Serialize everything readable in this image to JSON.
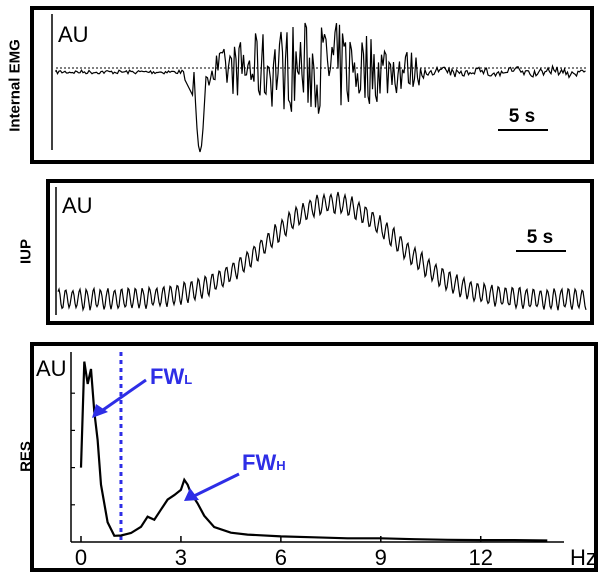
{
  "panels": {
    "emg": {
      "side_label": "Internal EMG",
      "au_label": "AU",
      "scale_bar": "5 s"
    },
    "iup": {
      "side_label": "IUP",
      "au_label": "AU",
      "scale_bar": "5 s"
    },
    "res": {
      "side_label": "RES",
      "au_label": "AU",
      "annotation_low": {
        "main": "FW",
        "sub": "L"
      },
      "annotation_high": {
        "main": "FW",
        "sub": "H"
      }
    }
  },
  "colors": {
    "trace": "#000000",
    "annotation": "#2e2ee6",
    "frame": "#000000"
  },
  "chart_data": [
    {
      "type": "line",
      "title": "",
      "xlabel": "",
      "ylabel": "AU",
      "y_side_label": "Internal EMG",
      "scale_bar": "5 s",
      "description_values": {
        "baseline": 0.0,
        "negative_spike_min": -1.6,
        "burst_amplitude": 0.8
      }
    },
    {
      "type": "line",
      "title": "",
      "xlabel": "",
      "ylabel": "AU",
      "y_side_label": "IUP",
      "scale_bar": "5 s",
      "description_values": {
        "baseline_level": 0.1,
        "peak_level": 0.9,
        "oscillation_amplitude": 0.08
      }
    },
    {
      "type": "line",
      "title": "",
      "xlabel": "Hz",
      "ylabel": "AU",
      "y_side_label": "RES",
      "x_ticks": [
        0,
        3,
        6,
        9,
        12
      ],
      "xlim": [
        -0.3,
        14.5
      ],
      "ylim": [
        0,
        1
      ],
      "series": [
        {
          "x": [
            0.0,
            0.1,
            0.2,
            0.3,
            0.4,
            0.5,
            0.6,
            0.8,
            1.0,
            1.2,
            1.5,
            1.8,
            2.0,
            2.2,
            2.4,
            2.6,
            2.8,
            3.0,
            3.1,
            3.2,
            3.3,
            3.5,
            3.7,
            4.0,
            4.5,
            5.0,
            6.0,
            7.0,
            8.0,
            9.0,
            10.0,
            11.0,
            12.0,
            13.0,
            14.0
          ],
          "y": [
            0.4,
            0.97,
            0.85,
            0.93,
            0.7,
            0.55,
            0.3,
            0.1,
            0.04,
            0.03,
            0.05,
            0.08,
            0.14,
            0.12,
            0.17,
            0.22,
            0.25,
            0.28,
            0.34,
            0.3,
            0.27,
            0.2,
            0.15,
            0.08,
            0.05,
            0.04,
            0.03,
            0.025,
            0.02,
            0.02,
            0.015,
            0.012,
            0.01,
            0.01,
            0.008
          ]
        }
      ],
      "vertical_marker_x": 1.2
    }
  ]
}
